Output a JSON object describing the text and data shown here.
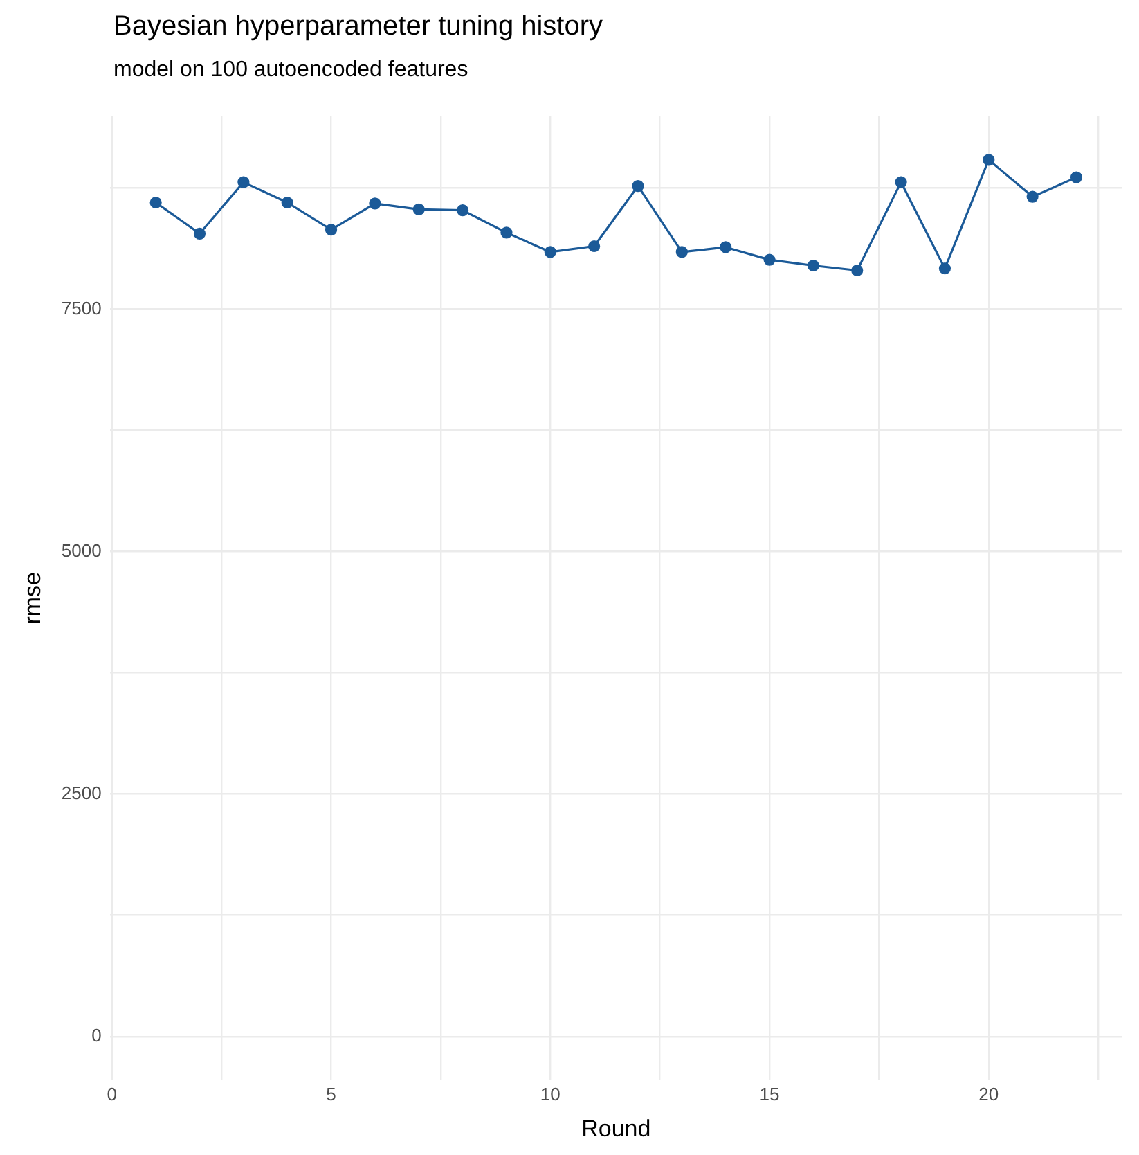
{
  "chart_data": {
    "type": "line",
    "title": "Bayesian hyperparameter tuning history",
    "subtitle": "model on 100 autoencoded features",
    "xlabel": "Round",
    "ylabel": "rmse",
    "x": [
      1,
      2,
      3,
      4,
      5,
      6,
      7,
      8,
      9,
      10,
      11,
      12,
      13,
      14,
      15,
      16,
      17,
      18,
      19,
      20,
      21,
      22
    ],
    "series": [
      {
        "color": "#1b5a98",
        "values": [
          8600,
          8280,
          8810,
          8600,
          8320,
          8590,
          8530,
          8520,
          8290,
          8090,
          8150,
          8770,
          8090,
          8140,
          8010,
          7950,
          7900,
          8810,
          7920,
          9040,
          8660,
          8860
        ]
      }
    ],
    "xlim": [
      -0.05,
      23.05
    ],
    "xticks": [
      0,
      {
        "value": 2.5,
        "label": null
      },
      5,
      {
        "value": 7.5,
        "label": null
      },
      10,
      {
        "value": 12.5,
        "label": null
      },
      15,
      {
        "value": 17.5,
        "label": null
      },
      20,
      {
        "value": 22.5,
        "label": null
      }
    ],
    "ylim": [
      -452,
      9492
    ],
    "yticks": [
      0,
      {
        "value": 1250,
        "label": null
      },
      2500,
      {
        "value": 3750,
        "label": null
      },
      5000,
      {
        "value": 6250,
        "label": null
      },
      7500,
      {
        "value": 8750,
        "label": null
      }
    ],
    "grid": true,
    "legend": false,
    "marker": "circle",
    "line_style": "solid"
  }
}
